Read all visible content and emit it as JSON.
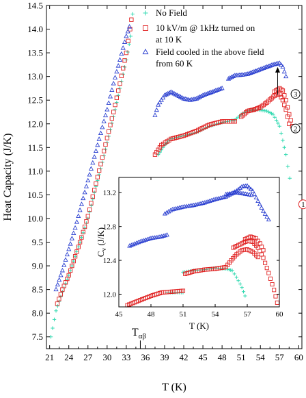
{
  "chart_data": [
    {
      "type": "scatter",
      "xlabel": "T (K)",
      "ylabel": "Heat Capacity (J/K)",
      "xlim": [
        20.5,
        60.5
      ],
      "ylim": [
        7.25,
        14.5
      ],
      "xticks": [
        21,
        24,
        27,
        30,
        33,
        36,
        39,
        42,
        45,
        48,
        51,
        54,
        57,
        60
      ],
      "yticks": [
        7.5,
        8.0,
        8.5,
        9.0,
        9.5,
        10.0,
        10.5,
        11.0,
        11.5,
        12.0,
        12.5,
        13.0,
        13.5,
        14.0,
        14.5
      ],
      "legend_position": "top-right",
      "annotation": {
        "label": "Tαβ",
        "label_main": "T",
        "label_sub": "αβ",
        "x": 35.2
      },
      "circled_labels": [
        {
          "text": "1",
          "x": 59.2,
          "y": 10.3
        },
        {
          "text": "2",
          "x": 58.0,
          "y": 11.9
        },
        {
          "text": "3",
          "x": 58.0,
          "y": 12.63
        }
      ],
      "series": [
        {
          "name": "No Field",
          "marker": "plus",
          "color": "#2fd9b0",
          "segments": [
            [
              [
                21.2,
                7.5
              ],
              [
                22.0,
                8.05
              ],
              [
                23.0,
                8.45
              ],
              [
                24.0,
                8.8
              ],
              [
                25.0,
                9.2
              ],
              [
                26.0,
                9.6
              ],
              [
                27.0,
                10.0
              ],
              [
                28.0,
                10.55
              ],
              [
                29.0,
                11.05
              ],
              [
                30.0,
                11.6
              ],
              [
                31.0,
                12.15
              ],
              [
                32.0,
                12.75
              ],
              [
                33.0,
                13.35
              ],
              [
                33.7,
                13.85
              ],
              [
                34.0,
                14.32
              ]
            ],
            [
              [
                38.0,
                11.35
              ],
              [
                39.0,
                11.55
              ],
              [
                40.0,
                11.68
              ],
              [
                42.0,
                11.75
              ],
              [
                44.0,
                11.82
              ],
              [
                46.0,
                11.95
              ],
              [
                48.0,
                12.03
              ],
              [
                50.0,
                12.08
              ],
              [
                51.0,
                12.2
              ],
              [
                52.0,
                12.27
              ],
              [
                53.5,
                12.3
              ],
              [
                55.0,
                12.27
              ],
              [
                56.0,
                12.2
              ],
              [
                57.0,
                11.95
              ],
              [
                58.0,
                11.35
              ],
              [
                58.6,
                10.85
              ]
            ]
          ]
        },
        {
          "name": "10 kV/m @ 1kHz turned on at 10 K",
          "name_line1": "10 kV/m @ 1kHz turned on",
          "name_line2": "at 10 K",
          "marker": "square",
          "color": "#e02020",
          "segments": [
            [
              [
                22.2,
                8.2
              ],
              [
                23.0,
                8.5
              ],
              [
                24.0,
                8.8
              ],
              [
                25.0,
                9.2
              ],
              [
                26.0,
                9.6
              ],
              [
                27.0,
                10.05
              ],
              [
                28.0,
                10.6
              ],
              [
                29.0,
                11.15
              ],
              [
                30.0,
                11.7
              ],
              [
                31.0,
                12.25
              ],
              [
                32.0,
                12.85
              ],
              [
                33.0,
                13.5
              ],
              [
                33.6,
                14.0
              ],
              [
                33.8,
                14.2
              ]
            ],
            [
              [
                37.5,
                11.35
              ],
              [
                38.5,
                11.55
              ],
              [
                40.0,
                11.68
              ],
              [
                42.0,
                11.75
              ],
              [
                44.0,
                11.85
              ],
              [
                46.0,
                11.98
              ],
              [
                48.0,
                12.05
              ],
              [
                50.0,
                12.05
              ]
            ],
            [
              [
                51.0,
                12.15
              ],
              [
                52.0,
                12.27
              ],
              [
                53.0,
                12.3
              ],
              [
                54.0,
                12.35
              ],
              [
                55.0,
                12.45
              ],
              [
                56.0,
                12.57
              ],
              [
                56.5,
                12.62
              ],
              [
                57.0,
                12.62
              ],
              [
                57.5,
                12.5
              ],
              [
                58.0,
                12.3
              ],
              [
                58.5,
                12.0
              ]
            ],
            [
              [
                56.2,
                12.68
              ],
              [
                57.0,
                12.75
              ],
              [
                57.5,
                12.7
              ],
              [
                58.0,
                12.5
              ],
              [
                58.5,
                12.2
              ],
              [
                59.0,
                11.95
              ]
            ]
          ]
        },
        {
          "name": "Field cooled in the above field from 60 K",
          "name_line1": "Field cooled in the above field",
          "name_line2": "from 60 K",
          "marker": "triangle",
          "color": "#2a3fd0",
          "segments": [
            [
              [
                22.0,
                8.5
              ],
              [
                23.0,
                8.9
              ],
              [
                24.0,
                9.35
              ],
              [
                25.0,
                9.8
              ],
              [
                26.0,
                10.3
              ],
              [
                27.0,
                10.8
              ],
              [
                28.0,
                11.3
              ],
              [
                29.0,
                11.8
              ],
              [
                30.0,
                12.3
              ],
              [
                31.0,
                12.85
              ],
              [
                32.0,
                13.35
              ],
              [
                33.0,
                13.85
              ],
              [
                33.5,
                14.05
              ]
            ],
            [
              [
                37.5,
                12.18
              ],
              [
                38.0,
                12.4
              ],
              [
                39.0,
                12.6
              ],
              [
                40.0,
                12.67
              ],
              [
                41.0,
                12.6
              ],
              [
                42.0,
                12.53
              ],
              [
                43.0,
                12.5
              ],
              [
                44.0,
                12.53
              ],
              [
                45.0,
                12.6
              ],
              [
                46.0,
                12.65
              ],
              [
                47.0,
                12.7
              ],
              [
                48.0,
                12.75
              ]
            ],
            [
              [
                49.0,
                12.95
              ],
              [
                50.0,
                13.02
              ],
              [
                51.0,
                13.03
              ],
              [
                52.0,
                13.05
              ],
              [
                53.0,
                13.1
              ],
              [
                54.0,
                13.15
              ],
              [
                55.0,
                13.2
              ],
              [
                56.0,
                13.25
              ],
              [
                57.0,
                13.28
              ],
              [
                57.5,
                13.2
              ],
              [
                58.0,
                13.0
              ]
            ]
          ]
        }
      ]
    },
    {
      "type": "scatter",
      "inset": true,
      "xlabel": "T (K)",
      "ylabel": "Cv (J/K)",
      "ylabel_main": "C",
      "ylabel_sub": "v",
      "ylabel_rest": " (J/K)",
      "xlim": [
        45.0,
        60.0
      ],
      "ylim": [
        11.85,
        13.38
      ],
      "xticks": [
        45,
        48,
        51,
        54,
        57,
        60
      ],
      "yticks": [
        12.0,
        12.4,
        12.8,
        13.2
      ],
      "series": [
        {
          "name": "No Field",
          "marker": "plus",
          "color": "#2fd9b0",
          "segments": [
            [
              [
                49.5,
                12.02
              ],
              [
                51.0,
                12.02
              ]
            ],
            [
              [
                51.0,
                12.26
              ],
              [
                52.0,
                12.28
              ],
              [
                53.0,
                12.29
              ],
              [
                54.0,
                12.31
              ],
              [
                55.0,
                12.3
              ],
              [
                55.6,
                12.28
              ],
              [
                56.0,
                12.2
              ],
              [
                56.5,
                12.08
              ],
              [
                56.8,
                11.98
              ]
            ]
          ]
        },
        {
          "name": "10 kV/m @ 1kHz turned on at 10 K",
          "marker": "square",
          "color": "#e02020",
          "segments": [
            [
              [
                45.8,
                11.87
              ],
              [
                47.0,
                11.93
              ],
              [
                48.0,
                11.98
              ],
              [
                49.0,
                12.02
              ],
              [
                50.0,
                12.03
              ],
              [
                51.0,
                12.04
              ]
            ],
            [
              [
                51.2,
                12.24
              ],
              [
                52.0,
                12.27
              ],
              [
                53.0,
                12.29
              ],
              [
                54.0,
                12.3
              ],
              [
                55.0,
                12.32
              ],
              [
                55.5,
                12.4
              ],
              [
                56.0,
                12.47
              ],
              [
                56.5,
                12.52
              ],
              [
                57.0,
                12.53
              ],
              [
                57.5,
                12.5
              ],
              [
                58.0,
                12.44
              ]
            ],
            [
              [
                55.7,
                12.55
              ],
              [
                56.5,
                12.6
              ],
              [
                57.0,
                12.63
              ],
              [
                57.5,
                12.62
              ],
              [
                58.0,
                12.55
              ],
              [
                58.5,
                12.43
              ],
              [
                59.0,
                12.25
              ],
              [
                59.5,
                12.05
              ],
              [
                59.8,
                11.9
              ]
            ],
            [
              [
                56.8,
                12.65
              ],
              [
                57.3,
                12.68
              ],
              [
                57.8,
                12.66
              ],
              [
                58.2,
                12.6
              ],
              [
                58.5,
                12.52
              ]
            ]
          ]
        },
        {
          "name": "Field cooled in the above field from 60 K",
          "marker": "triangle",
          "color": "#2a3fd0",
          "segments": [
            [
              [
                46.0,
                12.57
              ],
              [
                47.0,
                12.62
              ],
              [
                48.0,
                12.66
              ],
              [
                49.0,
                12.68
              ],
              [
                49.5,
                12.7
              ]
            ],
            [
              [
                49.3,
                12.95
              ],
              [
                50.0,
                13.0
              ],
              [
                51.0,
                13.03
              ],
              [
                52.0,
                13.05
              ],
              [
                53.0,
                13.08
              ],
              [
                54.0,
                13.12
              ],
              [
                55.0,
                13.15
              ],
              [
                56.0,
                13.22
              ],
              [
                56.5,
                13.27
              ],
              [
                57.0,
                13.28
              ],
              [
                57.5,
                13.22
              ],
              [
                58.0,
                13.1
              ],
              [
                58.5,
                12.98
              ],
              [
                59.0,
                12.88
              ]
            ],
            [
              [
                55.0,
                13.18
              ],
              [
                56.0,
                13.2
              ],
              [
                57.0,
                13.18
              ],
              [
                57.4,
                13.17
              ]
            ]
          ]
        }
      ]
    }
  ]
}
